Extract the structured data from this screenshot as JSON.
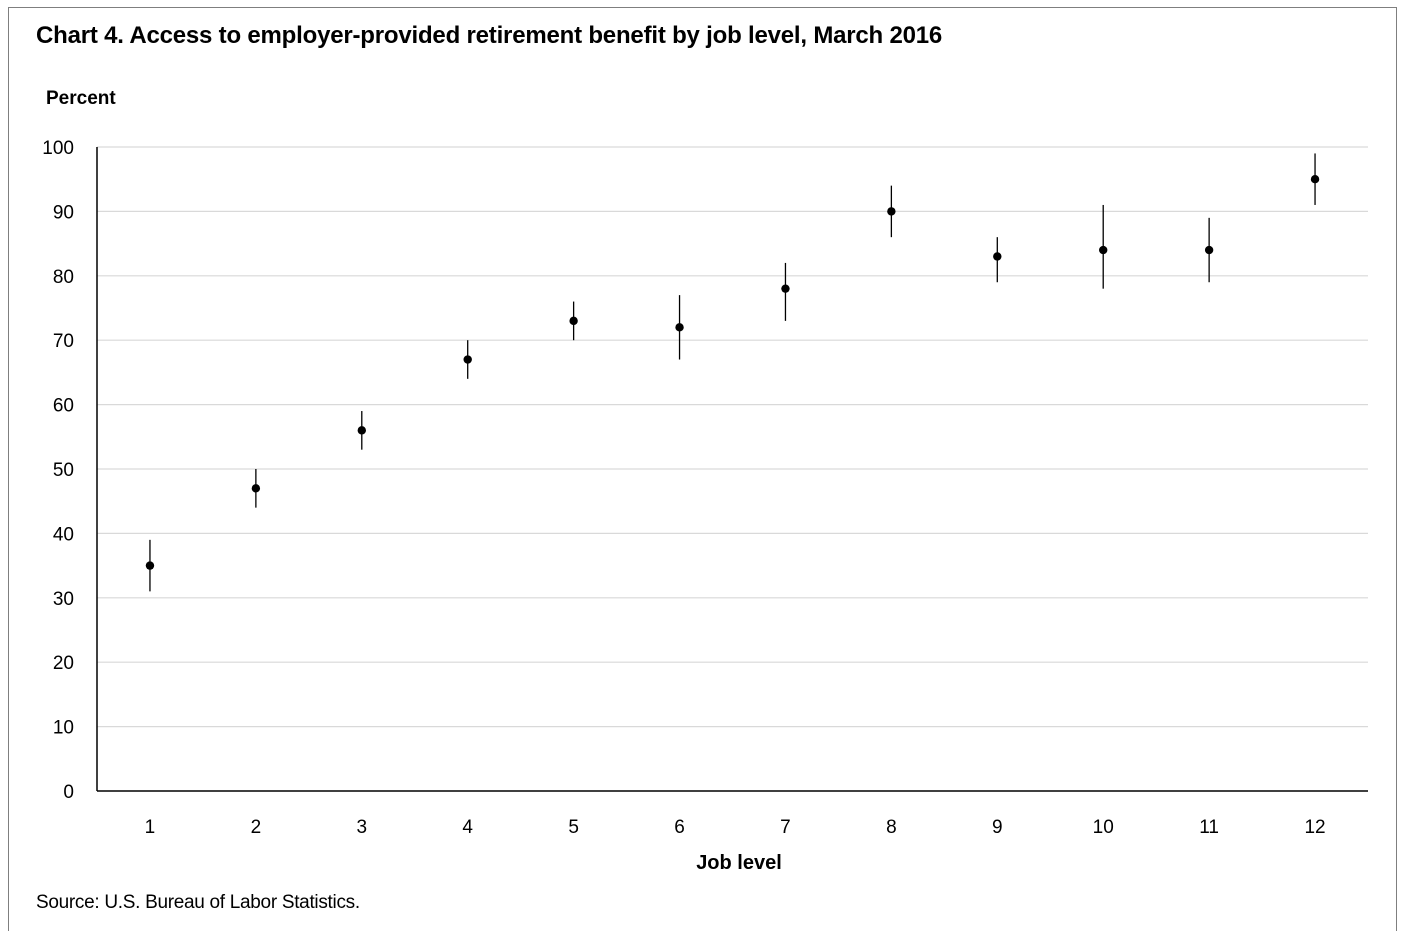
{
  "chart_data": {
    "type": "scatter",
    "title": "Chart 4. Access to employer-provided retirement benefit by job level, March 2016",
    "ylabel": "Percent",
    "xlabel": "Job level",
    "source": "Source: U.S. Bureau of Labor Statistics.",
    "ylim": [
      0,
      100
    ],
    "yticks": [
      0,
      10,
      20,
      30,
      40,
      50,
      60,
      70,
      80,
      90,
      100
    ],
    "grid": true,
    "legend": "none",
    "categories": [
      "1",
      "2",
      "3",
      "4",
      "5",
      "6",
      "7",
      "8",
      "9",
      "10",
      "11",
      "12"
    ],
    "values": [
      35,
      47,
      56,
      67,
      73,
      72,
      78,
      90,
      83,
      84,
      84,
      95
    ],
    "error_low": [
      31,
      44,
      53,
      64,
      70,
      67,
      73,
      86,
      79,
      78,
      79,
      91
    ],
    "error_high": [
      39,
      50,
      59,
      70,
      76,
      77,
      82,
      94,
      86,
      91,
      89,
      99
    ]
  },
  "colors": {
    "marker": "#000000",
    "gridline": "#d9d9d9",
    "axis": "#000000",
    "frame": "#7f7f7f"
  }
}
